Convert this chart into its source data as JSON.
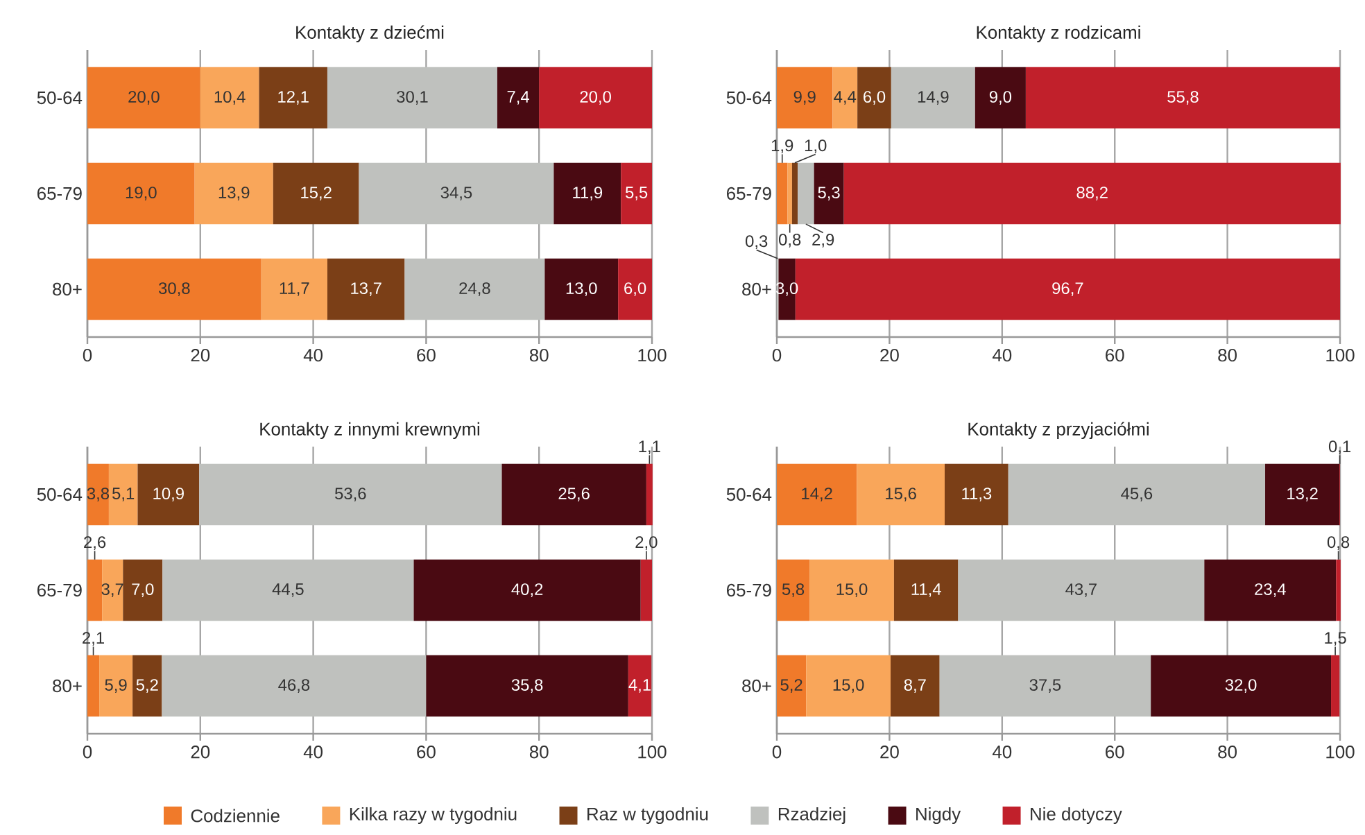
{
  "chart_data": [
    {
      "type": "bar",
      "orientation": "horizontal",
      "stacked": true,
      "title": "Kontakty z dziećmi",
      "categories": [
        "50-64",
        "65-79",
        "80+"
      ],
      "xlim": [
        0,
        100
      ],
      "xticks": [
        0,
        20,
        40,
        60,
        80,
        100
      ],
      "grid": "x",
      "legend": "bottom",
      "series": [
        {
          "name": "Codziennie",
          "color": "#f07a2a",
          "values": [
            20.0,
            19.0,
            30.8
          ],
          "value_labels": [
            "20,0",
            "19,0",
            "30,8"
          ]
        },
        {
          "name": "Kilka razy w tygodniu",
          "color": "#f9a65a",
          "values": [
            10.4,
            13.9,
            11.7
          ],
          "value_labels": [
            "10,4",
            "13,9",
            "11,7"
          ]
        },
        {
          "name": "Raz w tygodniu",
          "color": "#7b3f17",
          "values": [
            12.1,
            15.2,
            13.7
          ],
          "value_labels": [
            "12,1",
            "15,2",
            "13,7"
          ]
        },
        {
          "name": "Rzadziej",
          "color": "#bfc1be",
          "values": [
            30.1,
            34.5,
            24.8
          ],
          "value_labels": [
            "30,1",
            "34,5",
            "24,8"
          ]
        },
        {
          "name": "Nigdy",
          "color": "#4a0a12",
          "values": [
            7.4,
            11.9,
            13.0
          ],
          "value_labels": [
            "7,4",
            "11,9",
            "13,0"
          ]
        },
        {
          "name": "Nie dotyczy",
          "color": "#c1202b",
          "values": [
            20.0,
            5.5,
            6.0
          ],
          "value_labels": [
            "20,0",
            "5,5",
            "6,0"
          ]
        }
      ]
    },
    {
      "type": "bar",
      "orientation": "horizontal",
      "stacked": true,
      "title": "Kontakty z rodzicami",
      "categories": [
        "50-64",
        "65-79",
        "80+"
      ],
      "xlim": [
        0,
        100
      ],
      "xticks": [
        0,
        20,
        40,
        60,
        80,
        100
      ],
      "grid": "x",
      "series": [
        {
          "color": "#f07a2a",
          "values": [
            9.9,
            1.9,
            null
          ],
          "value_labels": [
            "9,9",
            "1,9",
            null
          ]
        },
        {
          "color": "#f9a65a",
          "values": [
            4.4,
            0.8,
            null
          ],
          "value_labels": [
            "4,4",
            "0,8",
            null
          ]
        },
        {
          "color": "#7b3f17",
          "values": [
            6.0,
            1.0,
            null
          ],
          "value_labels": [
            "6,0",
            "1,0",
            null
          ]
        },
        {
          "color": "#bfc1be",
          "values": [
            14.9,
            2.9,
            0.3
          ],
          "value_labels": [
            "14,9",
            "2,9",
            "0,3"
          ]
        },
        {
          "color": "#4a0a12",
          "values": [
            9.0,
            5.3,
            3.0
          ],
          "value_labels": [
            "9,0",
            "5,3",
            "3,0"
          ]
        },
        {
          "color": "#c1202b",
          "values": [
            55.8,
            88.2,
            96.7
          ],
          "value_labels": [
            "55,8",
            "88,2",
            "96,7"
          ]
        }
      ]
    },
    {
      "type": "bar",
      "orientation": "horizontal",
      "stacked": true,
      "title": "Kontakty z innymi krewnymi",
      "categories": [
        "50-64",
        "65-79",
        "80+"
      ],
      "xlim": [
        0,
        100
      ],
      "xticks": [
        0,
        20,
        40,
        60,
        80,
        100
      ],
      "grid": "x",
      "series": [
        {
          "color": "#f07a2a",
          "values": [
            3.8,
            2.6,
            2.1
          ],
          "value_labels": [
            "3,8",
            "2,6",
            "2,1"
          ]
        },
        {
          "color": "#f9a65a",
          "values": [
            5.1,
            3.7,
            5.9
          ],
          "value_labels": [
            "5,1",
            "3,7",
            "5,9"
          ]
        },
        {
          "color": "#7b3f17",
          "values": [
            10.9,
            7.0,
            5.2
          ],
          "value_labels": [
            "10,9",
            "7,0",
            "5,2"
          ]
        },
        {
          "color": "#bfc1be",
          "values": [
            53.6,
            44.5,
            46.8
          ],
          "value_labels": [
            "53,6",
            "44,5",
            "46,8"
          ]
        },
        {
          "color": "#4a0a12",
          "values": [
            25.6,
            40.2,
            35.8
          ],
          "value_labels": [
            "25,6",
            "40,2",
            "35,8"
          ]
        },
        {
          "color": "#c1202b",
          "values": [
            1.1,
            2.0,
            4.1
          ],
          "value_labels": [
            "1,1",
            "2,0",
            "4,1"
          ]
        }
      ]
    },
    {
      "type": "bar",
      "orientation": "horizontal",
      "stacked": true,
      "title": "Kontakty z przyjaciółmi",
      "categories": [
        "50-64",
        "65-79",
        "80+"
      ],
      "xlim": [
        0,
        100
      ],
      "xticks": [
        0,
        20,
        40,
        60,
        80,
        100
      ],
      "grid": "x",
      "series": [
        {
          "color": "#f07a2a",
          "values": [
            14.2,
            5.8,
            5.2
          ],
          "value_labels": [
            "14,2",
            "5,8",
            "5,2"
          ]
        },
        {
          "color": "#f9a65a",
          "values": [
            15.6,
            15.0,
            15.0
          ],
          "value_labels": [
            "15,6",
            "15,0",
            "15,0"
          ]
        },
        {
          "color": "#7b3f17",
          "values": [
            11.3,
            11.4,
            8.7
          ],
          "value_labels": [
            "11,3",
            "11,4",
            "8,7"
          ]
        },
        {
          "color": "#bfc1be",
          "values": [
            45.6,
            43.7,
            37.5
          ],
          "value_labels": [
            "45,6",
            "43,7",
            "37,5"
          ]
        },
        {
          "color": "#4a0a12",
          "values": [
            13.2,
            23.4,
            32.0
          ],
          "value_labels": [
            "13,2",
            "23,4",
            "32,0"
          ]
        },
        {
          "color": "#c1202b",
          "values": [
            0.1,
            0.8,
            1.5
          ],
          "value_labels": [
            "0,1",
            "0,8",
            "1,5"
          ]
        }
      ]
    }
  ]
}
